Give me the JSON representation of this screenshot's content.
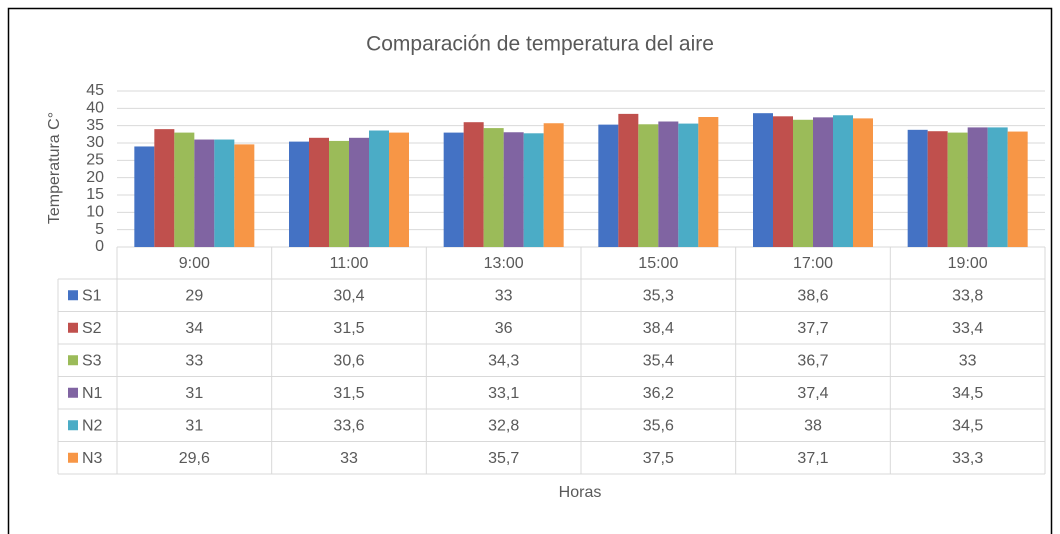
{
  "chart_data": {
    "type": "bar",
    "title": "Comparación de temperatura del aire",
    "y_label": "Temperatura  C°",
    "x_label": "Horas",
    "categories": [
      "9:00",
      "11:00",
      "13:00",
      "15:00",
      "17:00",
      "19:00"
    ],
    "series": [
      {
        "name": "S1",
        "color": "#4472c4",
        "values": [
          29,
          30.4,
          33,
          35.3,
          38.6,
          33.8
        ],
        "value_labels": [
          "29",
          "30,4",
          "33",
          "35,3",
          "38,6",
          "33,8"
        ]
      },
      {
        "name": "S2",
        "color": "#c0504d",
        "values": [
          34,
          31.5,
          36,
          38.4,
          37.7,
          33.4
        ],
        "value_labels": [
          "34",
          "31,5",
          "36",
          "38,4",
          "37,7",
          "33,4"
        ]
      },
      {
        "name": "S3",
        "color": "#9bbb59",
        "values": [
          33,
          30.6,
          34.3,
          35.4,
          36.7,
          33
        ],
        "value_labels": [
          "33",
          "30,6",
          "34,3",
          "35,4",
          "36,7",
          "33"
        ]
      },
      {
        "name": "N1",
        "color": "#8064a2",
        "values": [
          31,
          31.5,
          33.1,
          36.2,
          37.4,
          34.5
        ],
        "value_labels": [
          "31",
          "31,5",
          "33,1",
          "36,2",
          "37,4",
          "34,5"
        ]
      },
      {
        "name": "N2",
        "color": "#4bacc6",
        "values": [
          31,
          33.6,
          32.8,
          35.6,
          38,
          34.5
        ],
        "value_labels": [
          "31",
          "33,6",
          "32,8",
          "35,6",
          "38",
          "34,5"
        ]
      },
      {
        "name": "N3",
        "color": "#f79646",
        "values": [
          29.6,
          33,
          35.7,
          37.5,
          37.1,
          33.3
        ],
        "value_labels": [
          "29,6",
          "33",
          "35,7",
          "37,5",
          "37,1",
          "33,3"
        ]
      }
    ],
    "ylim": [
      0,
      45
    ],
    "yticks": [
      0,
      5,
      10,
      15,
      20,
      25,
      30,
      35,
      40,
      45
    ],
    "grid": true
  }
}
